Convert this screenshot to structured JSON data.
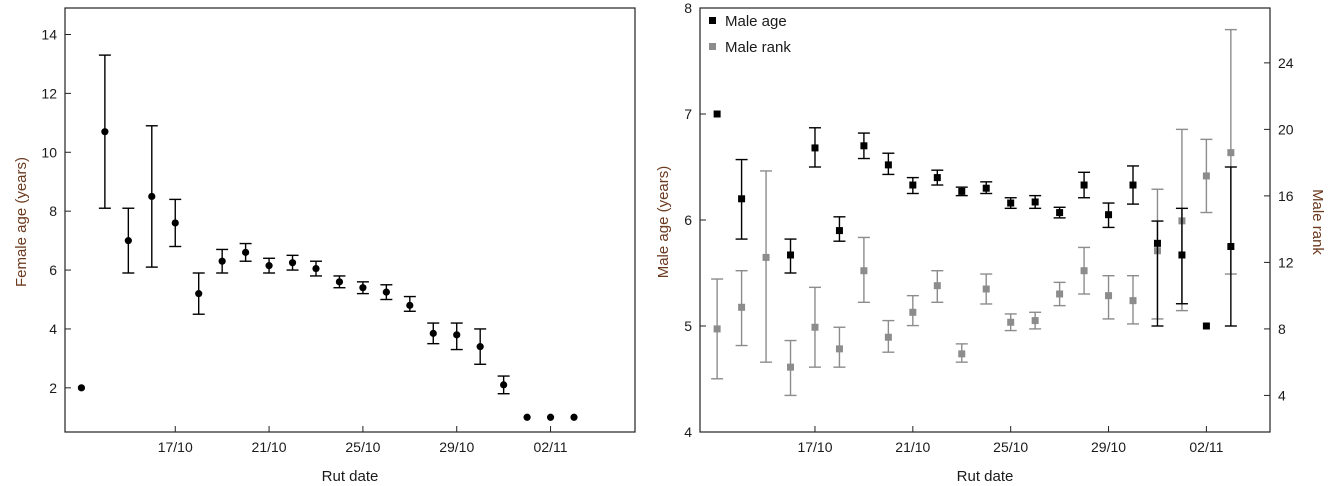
{
  "chart_data": [
    {
      "type": "scatter",
      "xlabel": "Rut date",
      "ylabel": "Female age (years)",
      "x_ticks": [
        {
          "x": 5,
          "label": "17/10"
        },
        {
          "x": 9,
          "label": "21/10"
        },
        {
          "x": 13,
          "label": "25/10"
        },
        {
          "x": 17,
          "label": "29/10"
        },
        {
          "x": 21,
          "label": "02/11"
        }
      ],
      "xlim": [
        0.3,
        24.6
      ],
      "y_ticks": [
        2,
        4,
        6,
        8,
        10,
        12,
        14
      ],
      "ylim": [
        0.5,
        14.9
      ],
      "series": [
        {
          "marker": "circle",
          "color": "#000000",
          "points": [
            {
              "x": 1,
              "y": 2.0,
              "low": 2.0,
              "high": 2.0
            },
            {
              "x": 2,
              "y": 10.7,
              "low": 8.1,
              "high": 13.3
            },
            {
              "x": 3,
              "y": 7.0,
              "low": 5.9,
              "high": 8.1
            },
            {
              "x": 4,
              "y": 8.5,
              "low": 6.1,
              "high": 10.9
            },
            {
              "x": 5,
              "y": 7.6,
              "low": 6.8,
              "high": 8.4
            },
            {
              "x": 6,
              "y": 5.2,
              "low": 4.5,
              "high": 5.9
            },
            {
              "x": 7,
              "y": 6.3,
              "low": 5.9,
              "high": 6.7
            },
            {
              "x": 8,
              "y": 6.6,
              "low": 6.3,
              "high": 6.9
            },
            {
              "x": 9,
              "y": 6.15,
              "low": 5.9,
              "high": 6.4
            },
            {
              "x": 10,
              "y": 6.25,
              "low": 6.0,
              "high": 6.5
            },
            {
              "x": 11,
              "y": 6.05,
              "low": 5.8,
              "high": 6.3
            },
            {
              "x": 12,
              "y": 5.6,
              "low": 5.4,
              "high": 5.8
            },
            {
              "x": 13,
              "y": 5.4,
              "low": 5.2,
              "high": 5.6
            },
            {
              "x": 14,
              "y": 5.25,
              "low": 5.0,
              "high": 5.5
            },
            {
              "x": 15,
              "y": 4.8,
              "low": 4.6,
              "high": 5.1
            },
            {
              "x": 16,
              "y": 3.85,
              "low": 3.5,
              "high": 4.2
            },
            {
              "x": 17,
              "y": 3.8,
              "low": 3.3,
              "high": 4.2
            },
            {
              "x": 18,
              "y": 3.4,
              "low": 2.8,
              "high": 4.0
            },
            {
              "x": 19,
              "y": 2.1,
              "low": 1.8,
              "high": 2.4
            },
            {
              "x": 20,
              "y": 1.0,
              "low": 1.0,
              "high": 1.0
            },
            {
              "x": 21,
              "y": 1.0,
              "low": 1.0,
              "high": 1.0
            },
            {
              "x": 22,
              "y": 1.0,
              "low": 1.0,
              "high": 1.0
            }
          ]
        }
      ]
    },
    {
      "type": "scatter",
      "xlabel": "Rut date",
      "ylabel": "Male age (years)",
      "y2label": "Male rank",
      "x_ticks": [
        {
          "x": 5,
          "label": "17/10"
        },
        {
          "x": 9,
          "label": "21/10"
        },
        {
          "x": 13,
          "label": "25/10"
        },
        {
          "x": 17,
          "label": "29/10"
        },
        {
          "x": 21,
          "label": "02/11"
        }
      ],
      "xlim": [
        0.3,
        23.6
      ],
      "y_ticks": [
        4,
        5,
        6,
        7,
        8
      ],
      "ylim": [
        4,
        8
      ],
      "y2_ticks": [
        4,
        8,
        12,
        16,
        20,
        24
      ],
      "y2lim": [
        1.8,
        27.3
      ],
      "legend": "top-left",
      "series": [
        {
          "name": "Male age",
          "axis": "left",
          "marker": "square",
          "color": "#000000",
          "points": [
            {
              "x": 1,
              "y": 7.0,
              "low": 7.0,
              "high": 7.0
            },
            {
              "x": 2,
              "y": 6.2,
              "low": 5.82,
              "high": 6.57
            },
            {
              "x": 4,
              "y": 5.67,
              "low": 5.5,
              "high": 5.82
            },
            {
              "x": 5,
              "y": 6.68,
              "low": 6.5,
              "high": 6.87
            },
            {
              "x": 6,
              "y": 5.9,
              "low": 5.8,
              "high": 6.03
            },
            {
              "x": 7,
              "y": 6.7,
              "low": 6.58,
              "high": 6.82
            },
            {
              "x": 8,
              "y": 6.52,
              "low": 6.43,
              "high": 6.63
            },
            {
              "x": 9,
              "y": 6.33,
              "low": 6.25,
              "high": 6.4
            },
            {
              "x": 10,
              "y": 6.4,
              "low": 6.33,
              "high": 6.47
            },
            {
              "x": 11,
              "y": 6.27,
              "low": 6.23,
              "high": 6.31
            },
            {
              "x": 12,
              "y": 6.3,
              "low": 6.25,
              "high": 6.36
            },
            {
              "x": 13,
              "y": 6.16,
              "low": 6.11,
              "high": 6.21
            },
            {
              "x": 14,
              "y": 6.17,
              "low": 6.11,
              "high": 6.23
            },
            {
              "x": 15,
              "y": 6.07,
              "low": 6.02,
              "high": 6.12
            },
            {
              "x": 16,
              "y": 6.33,
              "low": 6.21,
              "high": 6.45
            },
            {
              "x": 17,
              "y": 6.05,
              "low": 5.93,
              "high": 6.16
            },
            {
              "x": 18,
              "y": 6.33,
              "low": 6.15,
              "high": 6.51
            },
            {
              "x": 19,
              "y": 5.78,
              "low": 5.0,
              "high": 5.99
            },
            {
              "x": 20,
              "y": 5.67,
              "low": 5.21,
              "high": 6.11
            },
            {
              "x": 21,
              "y": 5.0,
              "low": 5.0,
              "high": 5.0
            },
            {
              "x": 22,
              "y": 5.75,
              "low": 5.0,
              "high": 6.5
            }
          ]
        },
        {
          "name": "Male rank",
          "axis": "right",
          "marker": "square",
          "color": "#8c8c8c",
          "points": [
            {
              "x": 1,
              "y": 8.0,
              "low": 5.0,
              "high": 11.0
            },
            {
              "x": 2,
              "y": 9.3,
              "low": 7.0,
              "high": 11.5
            },
            {
              "x": 3,
              "y": 12.3,
              "low": 6.0,
              "high": 17.5
            },
            {
              "x": 4,
              "y": 5.7,
              "low": 4.0,
              "high": 7.3
            },
            {
              "x": 5,
              "y": 8.1,
              "low": 5.7,
              "high": 10.5
            },
            {
              "x": 6,
              "y": 6.8,
              "low": 5.7,
              "high": 8.1
            },
            {
              "x": 7,
              "y": 11.5,
              "low": 9.6,
              "high": 13.5
            },
            {
              "x": 8,
              "y": 7.5,
              "low": 6.6,
              "high": 8.5
            },
            {
              "x": 9,
              "y": 9.0,
              "low": 8.2,
              "high": 10.0
            },
            {
              "x": 10,
              "y": 10.6,
              "low": 9.6,
              "high": 11.5
            },
            {
              "x": 11,
              "y": 6.5,
              "low": 6.0,
              "high": 7.1
            },
            {
              "x": 12,
              "y": 10.4,
              "low": 9.5,
              "high": 11.3
            },
            {
              "x": 13,
              "y": 8.4,
              "low": 7.9,
              "high": 8.9
            },
            {
              "x": 14,
              "y": 8.5,
              "low": 8.0,
              "high": 9.0
            },
            {
              "x": 15,
              "y": 10.1,
              "low": 9.4,
              "high": 10.8
            },
            {
              "x": 16,
              "y": 11.5,
              "low": 10.1,
              "high": 12.9
            },
            {
              "x": 17,
              "y": 10.0,
              "low": 8.6,
              "high": 11.2
            },
            {
              "x": 18,
              "y": 9.7,
              "low": 8.3,
              "high": 11.2
            },
            {
              "x": 19,
              "y": 12.7,
              "low": 8.6,
              "high": 16.4
            },
            {
              "x": 20,
              "y": 14.5,
              "low": 9.1,
              "high": 20.0
            },
            {
              "x": 21,
              "y": 17.2,
              "low": 15.0,
              "high": 19.4
            },
            {
              "x": 22,
              "y": 18.6,
              "low": 11.3,
              "high": 26.0
            }
          ]
        }
      ]
    }
  ]
}
